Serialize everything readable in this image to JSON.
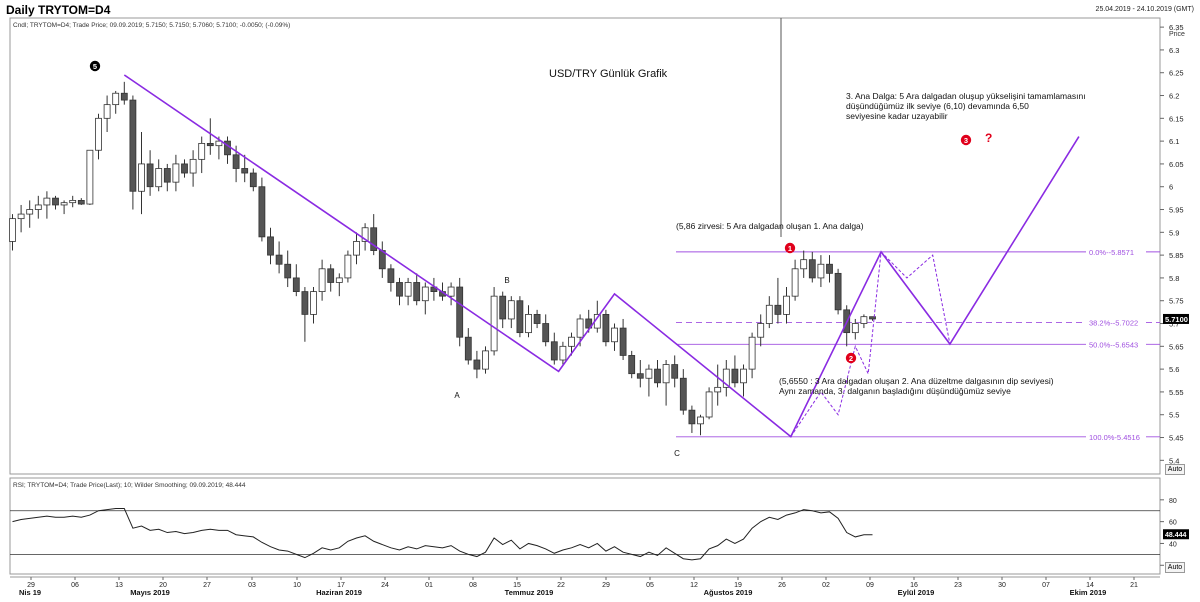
{
  "header": {
    "title": "Daily TRYTOM=D4",
    "date_range": "25.04.2019 - 24.10.2019 (GMT)"
  },
  "legend_main": "Cndl; TRYTOM=D4; Trade Price; 09.09.2019; 5.7150; 5.7150; 5.7060; 5.7100; -0.0050; (-0.09%)",
  "legend_rsi": "RSI; TRYTOM=D4; Trade Price(Last);  10;  Wilder Smoothing; 09.09.2019; 48.444",
  "price_axis_title": "Price",
  "auto_label": "Auto",
  "chart_data": [
    {
      "type": "candlestick",
      "title": "USD/TRY Günlük Grafik",
      "ylabel": "Price",
      "ylim": [
        5.37,
        6.37
      ],
      "yticks": [
        "6.35",
        "6.3",
        "6.25",
        "6.2",
        "6.15",
        "6.1",
        "6.05",
        "6",
        "5.95",
        "5.9",
        "5.85",
        "5.8",
        "5.75",
        "5.7",
        "5.65",
        "5.6",
        "5.55",
        "5.5",
        "5.45",
        "5.4"
      ],
      "last_price": "5.7100",
      "ohlc": [
        [
          5.88,
          5.94,
          5.86,
          5.93
        ],
        [
          5.93,
          5.96,
          5.9,
          5.94
        ],
        [
          5.94,
          5.97,
          5.91,
          5.95
        ],
        [
          5.95,
          5.98,
          5.93,
          5.96
        ],
        [
          5.96,
          5.99,
          5.93,
          5.975
        ],
        [
          5.975,
          5.98,
          5.95,
          5.96
        ],
        [
          5.96,
          5.97,
          5.94,
          5.965
        ],
        [
          5.965,
          5.98,
          5.955,
          5.97
        ],
        [
          5.97,
          5.975,
          5.96,
          5.962
        ],
        [
          5.962,
          6.08,
          5.96,
          6.08
        ],
        [
          6.08,
          6.16,
          6.06,
          6.15
        ],
        [
          6.15,
          6.2,
          6.12,
          6.18
        ],
        [
          6.18,
          6.21,
          6.16,
          6.205
        ],
        [
          6.205,
          6.23,
          6.18,
          6.19
        ],
        [
          6.19,
          6.2,
          5.95,
          5.99
        ],
        [
          5.99,
          6.12,
          5.94,
          6.05
        ],
        [
          6.05,
          6.08,
          5.98,
          6.0
        ],
        [
          6.0,
          6.06,
          5.99,
          6.04
        ],
        [
          6.04,
          6.05,
          5.99,
          6.01
        ],
        [
          6.01,
          6.07,
          5.99,
          6.05
        ],
        [
          6.05,
          6.06,
          6.02,
          6.03
        ],
        [
          6.03,
          6.08,
          6.0,
          6.06
        ],
        [
          6.06,
          6.11,
          6.03,
          6.095
        ],
        [
          6.095,
          6.15,
          6.07,
          6.09
        ],
        [
          6.09,
          6.11,
          6.06,
          6.1
        ],
        [
          6.1,
          6.11,
          6.05,
          6.07
        ],
        [
          6.07,
          6.09,
          6.01,
          6.04
        ],
        [
          6.04,
          6.07,
          6.01,
          6.03
        ],
        [
          6.03,
          6.04,
          5.99,
          6.0
        ],
        [
          6.0,
          6.02,
          5.88,
          5.89
        ],
        [
          5.89,
          5.91,
          5.83,
          5.85
        ],
        [
          5.85,
          5.88,
          5.81,
          5.83
        ],
        [
          5.83,
          5.86,
          5.78,
          5.8
        ],
        [
          5.8,
          5.83,
          5.76,
          5.77
        ],
        [
          5.77,
          5.78,
          5.66,
          5.72
        ],
        [
          5.72,
          5.78,
          5.7,
          5.77
        ],
        [
          5.77,
          5.84,
          5.75,
          5.82
        ],
        [
          5.82,
          5.83,
          5.77,
          5.79
        ],
        [
          5.79,
          5.81,
          5.76,
          5.8
        ],
        [
          5.8,
          5.86,
          5.79,
          5.85
        ],
        [
          5.85,
          5.9,
          5.83,
          5.88
        ],
        [
          5.88,
          5.92,
          5.86,
          5.91
        ],
        [
          5.91,
          5.94,
          5.85,
          5.86
        ],
        [
          5.86,
          5.88,
          5.8,
          5.82
        ],
        [
          5.82,
          5.83,
          5.77,
          5.79
        ],
        [
          5.79,
          5.8,
          5.74,
          5.76
        ],
        [
          5.76,
          5.8,
          5.74,
          5.79
        ],
        [
          5.79,
          5.81,
          5.74,
          5.75
        ],
        [
          5.75,
          5.79,
          5.72,
          5.78
        ],
        [
          5.78,
          5.8,
          5.75,
          5.77
        ],
        [
          5.77,
          5.79,
          5.75,
          5.76
        ],
        [
          5.76,
          5.79,
          5.74,
          5.78
        ],
        [
          5.78,
          5.8,
          5.65,
          5.67
        ],
        [
          5.67,
          5.69,
          5.61,
          5.62
        ],
        [
          5.62,
          5.64,
          5.58,
          5.6
        ],
        [
          5.6,
          5.65,
          5.59,
          5.64
        ],
        [
          5.64,
          5.78,
          5.63,
          5.76
        ],
        [
          5.76,
          5.77,
          5.69,
          5.71
        ],
        [
          5.71,
          5.76,
          5.69,
          5.75
        ],
        [
          5.75,
          5.76,
          5.67,
          5.68
        ],
        [
          5.68,
          5.74,
          5.67,
          5.72
        ],
        [
          5.72,
          5.73,
          5.69,
          5.7
        ],
        [
          5.7,
          5.72,
          5.65,
          5.66
        ],
        [
          5.66,
          5.68,
          5.61,
          5.62
        ],
        [
          5.62,
          5.66,
          5.61,
          5.65
        ],
        [
          5.65,
          5.68,
          5.63,
          5.67
        ],
        [
          5.67,
          5.72,
          5.65,
          5.71
        ],
        [
          5.71,
          5.73,
          5.68,
          5.69
        ],
        [
          5.69,
          5.75,
          5.68,
          5.72
        ],
        [
          5.72,
          5.73,
          5.65,
          5.66
        ],
        [
          5.66,
          5.7,
          5.64,
          5.69
        ],
        [
          5.69,
          5.71,
          5.62,
          5.63
        ],
        [
          5.63,
          5.64,
          5.58,
          5.59
        ],
        [
          5.59,
          5.62,
          5.56,
          5.58
        ],
        [
          5.58,
          5.61,
          5.54,
          5.6
        ],
        [
          5.6,
          5.62,
          5.56,
          5.57
        ],
        [
          5.57,
          5.62,
          5.52,
          5.61
        ],
        [
          5.61,
          5.63,
          5.56,
          5.58
        ],
        [
          5.58,
          5.6,
          5.5,
          5.51
        ],
        [
          5.51,
          5.52,
          5.46,
          5.48
        ],
        [
          5.48,
          5.5,
          5.455,
          5.495
        ],
        [
          5.495,
          5.56,
          5.49,
          5.55
        ],
        [
          5.55,
          5.61,
          5.52,
          5.56
        ],
        [
          5.56,
          5.62,
          5.54,
          5.6
        ],
        [
          5.6,
          5.63,
          5.56,
          5.57
        ],
        [
          5.57,
          5.61,
          5.54,
          5.6
        ],
        [
          5.6,
          5.68,
          5.58,
          5.67
        ],
        [
          5.67,
          5.72,
          5.65,
          5.7
        ],
        [
          5.7,
          5.76,
          5.69,
          5.74
        ],
        [
          5.74,
          5.8,
          5.7,
          5.72
        ],
        [
          5.72,
          5.78,
          5.7,
          5.76
        ],
        [
          5.76,
          5.84,
          5.75,
          5.82
        ],
        [
          5.82,
          5.86,
          5.8,
          5.84
        ],
        [
          5.84,
          5.857,
          5.79,
          5.8
        ],
        [
          5.8,
          5.85,
          5.78,
          5.83
        ],
        [
          5.83,
          5.85,
          5.79,
          5.81
        ],
        [
          5.81,
          5.82,
          5.72,
          5.73
        ],
        [
          5.73,
          5.74,
          5.65,
          5.68
        ],
        [
          5.68,
          5.71,
          5.665,
          5.7
        ],
        [
          5.7,
          5.72,
          5.69,
          5.715
        ],
        [
          5.715,
          5.715,
          5.706,
          5.71
        ]
      ],
      "annotations": [
        {
          "label": "5",
          "style": "wave-circle-black"
        },
        {
          "label": "A",
          "style": "text"
        },
        {
          "label": "B",
          "style": "text"
        },
        {
          "label": "C",
          "style": "text"
        },
        {
          "label": "1",
          "style": "wave-circle-red"
        },
        {
          "label": "2",
          "style": "wave-circle-red"
        },
        {
          "label": "3",
          "style": "wave-circle-red"
        },
        {
          "label": "?",
          "style": "red-text"
        }
      ],
      "notes": [
        {
          "text": "(5,86 zirvesi: 5 Ara dalgadan oluşan 1. Ana dalga)"
        },
        {
          "lines": [
            "3. Ana Dalga: 5 Ara dalgadan oluşup yükselişini tamamlamasını",
            "düşündüğümüz ilk seviye (6,10) devamında 6,50",
            "seviyesine kadar uzayabilir"
          ]
        },
        {
          "lines": [
            "(5,6550 : 3 Ara dalgadan oluşan 2. Ana düzeltme dalgasının dip seviyesi)",
            "Aynı zamanda, 3. dalganın başladığını düşündüğümüz seviye"
          ]
        }
      ],
      "fibonacci": [
        {
          "label": "0.0%--5.8571",
          "value": 5.8571,
          "style": "solid"
        },
        {
          "label": "38.2%--5.7022",
          "value": 5.7022,
          "style": "dashed"
        },
        {
          "label": "50.0%--5.6543",
          "value": 5.6543,
          "style": "solid"
        },
        {
          "label": "100.0%-5.4516",
          "value": 5.4516,
          "style": "solid"
        }
      ],
      "wave_path_points": [
        {
          "bar": 13,
          "price": 6.245
        },
        {
          "bar": 63.5,
          "price": 5.595
        },
        {
          "bar": 70,
          "price": 5.765
        },
        {
          "bar": 90.5,
          "price": 5.452
        },
        {
          "bar": 101,
          "price": 5.857
        },
        {
          "bar": 109,
          "price": 5.655
        },
        {
          "bar": 124,
          "price": 6.11
        }
      ],
      "colors": {
        "bull": "#ffffff",
        "bear": "#555555",
        "wave": "#8a2be2",
        "fib": "#a050e0",
        "marker": "#e0001b"
      }
    },
    {
      "type": "line",
      "name": "RSI",
      "ylim": [
        12,
        100
      ],
      "yticks": [
        "80",
        "60",
        "40",
        "20"
      ],
      "levels": [
        70,
        30
      ],
      "last_value": "48.444",
      "values": [
        60,
        62,
        63,
        64,
        65,
        64,
        64,
        65,
        64,
        66,
        70,
        71,
        72,
        72,
        54,
        56,
        52,
        53,
        50,
        51,
        49,
        50,
        52,
        53,
        52,
        52,
        48,
        47,
        46,
        41,
        37,
        34,
        33,
        30,
        27,
        31,
        36,
        34,
        36,
        42,
        45,
        47,
        42,
        39,
        36,
        34,
        37,
        35,
        38,
        37,
        36,
        38,
        33,
        30,
        28,
        32,
        45,
        39,
        43,
        35,
        40,
        38,
        35,
        31,
        34,
        36,
        39,
        36,
        40,
        33,
        37,
        32,
        30,
        28,
        32,
        29,
        36,
        31,
        26,
        25,
        26,
        35,
        38,
        44,
        40,
        44,
        54,
        60,
        64,
        62,
        66,
        68,
        71,
        70,
        68,
        69,
        63,
        50,
        46,
        48,
        48
      ]
    }
  ],
  "x_axis": {
    "days": [
      "29",
      "06",
      "13",
      "20",
      "27",
      "03",
      "10",
      "17",
      "24",
      "01",
      "08",
      "15",
      "22",
      "29",
      "05",
      "12",
      "19",
      "26",
      "02",
      "09",
      "16",
      "23",
      "30",
      "07",
      "14",
      "21"
    ],
    "months": [
      "Nis 19",
      "Mayıs 2019",
      "Haziran 2019",
      "Temmuz 2019",
      "Ağustos 2019",
      "Eylül 2019",
      "Ekim 2019"
    ]
  }
}
